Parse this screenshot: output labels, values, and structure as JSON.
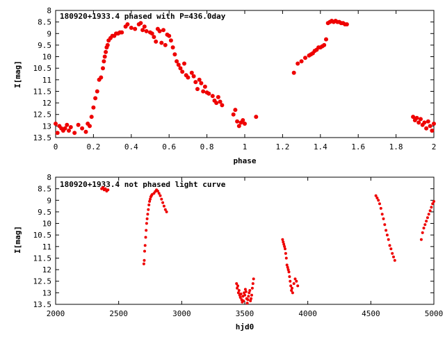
{
  "chart_data": [
    {
      "type": "scatter",
      "title": "180920+1933.4 phased with P=436.0day",
      "xlabel": "phase",
      "ylabel": "I[mag]",
      "xlim": [
        0,
        2
      ],
      "ylim": [
        13.5,
        8
      ],
      "x_ticks": [
        0,
        0.2,
        0.4,
        0.6,
        0.8,
        1,
        1.2,
        1.4,
        1.6,
        1.8,
        2
      ],
      "x_tick_labels": [
        "0",
        "0.2",
        "0.4",
        "0.6",
        "0.8",
        "1",
        "1.2",
        "1.4",
        "1.6",
        "1.8",
        "2"
      ],
      "y_ticks": [
        8,
        8.5,
        9,
        9.5,
        10,
        10.5,
        11,
        11.5,
        12,
        12.5,
        13,
        13.5
      ],
      "y_tick_labels": [
        "8",
        "8.5",
        "9",
        "9.5",
        "10",
        "10.5",
        "11",
        "11.5",
        "12",
        "12.5",
        "13",
        "13.5"
      ],
      "grid": false,
      "legend": "none",
      "marker_color": "#ee0000",
      "series": [
        {
          "x": [
            0.0,
            0.01,
            0.02,
            0.03,
            0.04,
            0.05,
            0.06,
            0.07,
            0.08,
            0.1,
            0.12,
            0.14,
            0.16,
            0.17,
            0.18,
            0.19,
            0.2,
            0.21,
            0.22,
            0.23,
            0.24,
            0.25,
            0.255,
            0.26,
            0.265,
            0.27,
            0.275,
            0.28,
            0.29,
            0.3,
            0.31,
            0.32,
            0.33,
            0.34,
            0.35,
            0.37,
            0.38,
            0.4,
            0.42,
            0.44,
            0.45,
            0.46,
            0.47,
            0.48,
            0.5,
            0.51,
            0.52,
            0.53,
            0.54,
            0.55,
            0.56,
            0.57,
            0.58,
            0.59,
            0.6,
            0.61,
            0.62,
            0.63,
            0.64,
            0.65,
            0.66,
            0.67,
            0.68,
            0.69,
            0.7,
            0.72,
            0.73,
            0.74,
            0.75,
            0.76,
            0.77,
            0.78,
            0.79,
            0.8,
            0.81,
            0.83,
            0.84,
            0.85,
            0.86,
            0.87,
            0.88,
            0.94,
            0.95,
            0.96,
            0.97,
            0.98,
            0.99,
            1.0,
            1.06,
            1.26,
            1.28,
            1.3,
            1.32,
            1.34,
            1.35,
            1.36,
            1.37,
            1.38,
            1.39,
            1.4,
            1.41,
            1.42,
            1.43,
            1.44,
            1.45,
            1.46,
            1.47,
            1.48,
            1.49,
            1.5,
            1.51,
            1.52,
            1.53,
            1.54,
            1.89,
            1.9,
            1.91,
            1.92,
            1.93,
            1.94,
            1.95,
            1.96,
            1.97,
            1.98,
            1.99,
            2.0
          ],
          "y": [
            12.9,
            13.3,
            13.0,
            13.1,
            13.2,
            13.1,
            12.95,
            13.2,
            13.05,
            13.3,
            12.95,
            13.1,
            13.25,
            12.9,
            13.0,
            12.6,
            12.2,
            11.8,
            11.5,
            11.0,
            10.9,
            10.5,
            10.2,
            10.0,
            9.8,
            9.6,
            9.5,
            9.3,
            9.2,
            9.1,
            9.1,
            9.0,
            9.0,
            8.95,
            8.95,
            8.7,
            8.6,
            8.75,
            8.8,
            8.6,
            8.55,
            8.85,
            8.7,
            8.9,
            8.95,
            9.0,
            9.15,
            9.35,
            8.8,
            8.9,
            9.4,
            8.85,
            9.5,
            9.05,
            9.1,
            9.3,
            9.6,
            9.9,
            10.2,
            10.35,
            10.5,
            10.65,
            10.3,
            10.8,
            10.9,
            10.7,
            10.85,
            11.1,
            11.4,
            11.0,
            11.15,
            11.5,
            11.3,
            11.55,
            11.6,
            11.7,
            11.9,
            12.0,
            11.75,
            11.95,
            12.1,
            12.5,
            12.3,
            12.8,
            13.0,
            12.85,
            12.75,
            12.9,
            12.6,
            10.7,
            10.3,
            10.2,
            10.05,
            9.95,
            9.9,
            9.85,
            9.75,
            9.7,
            9.6,
            9.6,
            9.55,
            9.5,
            9.25,
            8.55,
            8.5,
            8.45,
            8.5,
            8.45,
            8.5,
            8.5,
            8.55,
            8.55,
            8.6,
            8.6,
            12.6,
            12.75,
            12.65,
            12.85,
            12.7,
            12.95,
            12.85,
            13.1,
            12.8,
            13.0,
            13.2,
            12.9
          ]
        }
      ]
    },
    {
      "type": "scatter",
      "title": "180920+1933.4 not phased light curve",
      "xlabel": "hjd0",
      "ylabel": "I[mag]",
      "xlim": [
        2000,
        5000
      ],
      "ylim": [
        13.5,
        8
      ],
      "x_ticks": [
        2000,
        2500,
        3000,
        3500,
        4000,
        4500,
        5000
      ],
      "x_tick_labels": [
        "2000",
        "2500",
        "3000",
        "3500",
        "4000",
        "4500",
        "5000"
      ],
      "y_ticks": [
        8,
        8.5,
        9,
        9.5,
        10,
        10.5,
        11,
        11.5,
        12,
        12.5,
        13,
        13.5
      ],
      "y_tick_labels": [
        "8",
        "8.5",
        "9",
        "9.5",
        "10",
        "10.5",
        "11",
        "11.5",
        "12",
        "12.5",
        "13",
        "13.5"
      ],
      "grid": false,
      "legend": "none",
      "marker_color": "#ee0000",
      "series": [
        {
          "x": [
            2365,
            2375,
            2385,
            2395,
            2405,
            2415,
            2700,
            2703,
            2706,
            2710,
            2714,
            2718,
            2722,
            2726,
            2730,
            2735,
            2740,
            2745,
            2750,
            2755,
            2760,
            2765,
            2780,
            2790,
            2800,
            2810,
            2820,
            2830,
            2840,
            2850,
            2860,
            2870,
            2880,
            3435,
            3440,
            3445,
            3450,
            3455,
            3460,
            3465,
            3470,
            3475,
            3480,
            3485,
            3490,
            3495,
            3500,
            3505,
            3510,
            3515,
            3520,
            3525,
            3530,
            3535,
            3540,
            3545,
            3550,
            3555,
            3560,
            3565,
            3570,
            3800,
            3805,
            3810,
            3815,
            3820,
            3825,
            3830,
            3835,
            3840,
            3845,
            3850,
            3855,
            3860,
            3865,
            3870,
            3875,
            3880,
            3890,
            3900,
            3910,
            3920,
            4540,
            4550,
            4560,
            4570,
            4580,
            4590,
            4600,
            4610,
            4620,
            4630,
            4640,
            4650,
            4660,
            4670,
            4680,
            4690,
            4900,
            4910,
            4920,
            4930,
            4940,
            4950,
            4960,
            4970,
            4980,
            4990,
            5000
          ],
          "y": [
            8.5,
            8.45,
            8.55,
            8.5,
            8.6,
            8.55,
            11.75,
            11.6,
            11.2,
            10.95,
            10.6,
            10.3,
            10.0,
            9.8,
            9.6,
            9.4,
            9.2,
            9.05,
            8.95,
            8.85,
            8.8,
            8.75,
            8.7,
            8.62,
            8.55,
            8.6,
            8.7,
            8.8,
            8.95,
            9.1,
            9.25,
            9.4,
            9.5,
            12.6,
            12.8,
            12.7,
            13.0,
            12.9,
            13.1,
            13.2,
            13.05,
            13.3,
            13.4,
            13.15,
            13.35,
            13.0,
            13.1,
            12.85,
            12.95,
            13.25,
            13.45,
            13.3,
            13.15,
            13.0,
            12.9,
            13.35,
            13.25,
            13.1,
            12.8,
            12.6,
            12.4,
            10.7,
            10.8,
            10.9,
            11.0,
            11.1,
            11.3,
            11.5,
            11.8,
            11.9,
            12.0,
            12.1,
            12.3,
            12.5,
            12.7,
            12.9,
            12.8,
            13.0,
            12.6,
            12.4,
            12.5,
            12.7,
            8.8,
            8.9,
            9.0,
            9.15,
            9.35,
            9.6,
            9.8,
            10.05,
            10.3,
            10.5,
            10.7,
            10.95,
            11.1,
            11.3,
            11.45,
            11.6,
            10.7,
            10.4,
            10.2,
            10.05,
            9.9,
            9.75,
            9.6,
            9.45,
            9.3,
            9.15,
            9.05
          ]
        }
      ]
    }
  ]
}
